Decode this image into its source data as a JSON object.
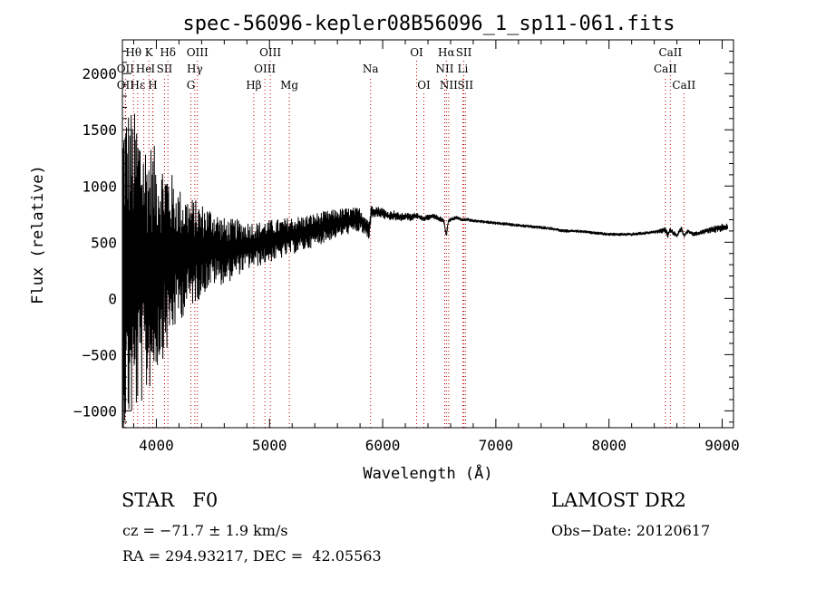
{
  "chart_data": {
    "type": "line",
    "title": "spec-56096-kepler08B56096_1_sp11-061.fits",
    "xlabel": "Wavelength (Å)",
    "ylabel": "Flux (relative)",
    "xlim": [
      3700,
      9100
    ],
    "ylim": [
      -1150,
      2300
    ],
    "xticks": [
      4000,
      5000,
      6000,
      7000,
      8000,
      9000
    ],
    "yticks": [
      -1000,
      -500,
      0,
      500,
      1000,
      1500,
      2000
    ],
    "grid": false,
    "legend": "none",
    "series": [
      {
        "x": [
          3700,
          3760,
          3800,
          3850,
          3900,
          3950,
          4000,
          4050,
          4100,
          4150,
          4200,
          4250,
          4300,
          4350,
          4400,
          4450,
          4500,
          4550,
          4600,
          4650,
          4700,
          4750,
          4800,
          4850,
          4900,
          4950,
          5000,
          5100,
          5200,
          5300,
          5400,
          5500,
          5600,
          5700,
          5800,
          5850,
          5880,
          5900,
          5950,
          6000,
          6050,
          6100,
          6150,
          6200,
          6250,
          6300,
          6350,
          6400,
          6450,
          6500,
          6540,
          6563,
          6580,
          6600,
          6650,
          6700,
          6750,
          6800,
          6850,
          6900,
          7000,
          7100,
          7200,
          7300,
          7400,
          7500,
          7600,
          7700,
          7800,
          7900,
          8000,
          8100,
          8200,
          8300,
          8400,
          8450,
          8500,
          8520,
          8540,
          8560,
          8600,
          8640,
          8662,
          8700,
          8750,
          8800,
          8850,
          8900,
          8950,
          9000,
          9050
        ],
        "y": [
          250,
          300,
          280,
          320,
          260,
          300,
          340,
          350,
          370,
          380,
          390,
          400,
          410,
          420,
          430,
          450,
          460,
          440,
          420,
          430,
          450,
          460,
          470,
          480,
          480,
          500,
          510,
          530,
          560,
          580,
          610,
          640,
          670,
          690,
          700,
          650,
          600,
          780,
          770,
          760,
          730,
          740,
          720,
          730,
          720,
          740,
          710,
          720,
          730,
          710,
          690,
          560,
          690,
          700,
          720,
          700,
          700,
          690,
          690,
          680,
          670,
          660,
          650,
          640,
          630,
          620,
          600,
          600,
          590,
          580,
          570,
          570,
          570,
          580,
          590,
          600,
          610,
          560,
          610,
          590,
          560,
          620,
          560,
          600,
          570,
          580,
          600,
          610,
          620,
          630,
          640
        ],
        "noise": [
          1500,
          1450,
          1400,
          1300,
          1200,
          1100,
          1000,
          900,
          850,
          700,
          600,
          550,
          500,
          460,
          420,
          380,
          350,
          320,
          300,
          280,
          260,
          240,
          220,
          210,
          200,
          200,
          190,
          180,
          170,
          160,
          150,
          140,
          130,
          120,
          110,
          100,
          110,
          60,
          50,
          50,
          45,
          45,
          40,
          35,
          35,
          30,
          30,
          25,
          25,
          25,
          22,
          20,
          20,
          20,
          18,
          15,
          15,
          15,
          15,
          15,
          15,
          15,
          15,
          15,
          15,
          15,
          15,
          15,
          15,
          15,
          15,
          15,
          15,
          15,
          15,
          20,
          30,
          30,
          20,
          25,
          20,
          25,
          20,
          20,
          20,
          20,
          25,
          30,
          35,
          40,
          40
        ]
      }
    ],
    "lines": [
      {
        "label": "Hθ",
        "wave": 3798,
        "row": 0
      },
      {
        "label": "K",
        "wave": 3934,
        "row": 0
      },
      {
        "label": "Hδ",
        "wave": 4102,
        "row": 0
      },
      {
        "label": "OIII",
        "wave": 4363,
        "row": 0
      },
      {
        "label": "OIII",
        "wave": 5007,
        "row": 0
      },
      {
        "label": "OI",
        "wave": 6300,
        "row": 0
      },
      {
        "label": "Hα",
        "wave": 6563,
        "row": 0
      },
      {
        "label": "SII",
        "wave": 6717,
        "row": 0
      },
      {
        "label": "CaII",
        "wave": 8542,
        "row": 0
      },
      {
        "label": "OII",
        "wave": 3727,
        "row": 1
      },
      {
        "label": "He",
        "wave": 3889,
        "row": 1
      },
      {
        "label": "I",
        "wave": 3970,
        "row": 1
      },
      {
        "label": "SII",
        "wave": 4072,
        "row": 1
      },
      {
        "label": "Hγ",
        "wave": 4340,
        "row": 1
      },
      {
        "label": "OIII",
        "wave": 4959,
        "row": 1
      },
      {
        "label": "Na",
        "wave": 5893,
        "row": 1
      },
      {
        "label": "NII",
        "wave": 6548,
        "row": 1
      },
      {
        "label": "Li",
        "wave": 6708,
        "row": 1
      },
      {
        "label": "CaII",
        "wave": 8498,
        "row": 1
      },
      {
        "label": "OII",
        "wave": 3727,
        "row": 2
      },
      {
        "label": "Hε",
        "wave": 3835,
        "row": 2
      },
      {
        "label": "H",
        "wave": 3968,
        "row": 2
      },
      {
        "label": "G",
        "wave": 4305,
        "row": 2
      },
      {
        "label": "Hβ",
        "wave": 4861,
        "row": 2
      },
      {
        "label": "Mg",
        "wave": 5175,
        "row": 2
      },
      {
        "label": "OI",
        "wave": 6364,
        "row": 2
      },
      {
        "label": "NII",
        "wave": 6583,
        "row": 2
      },
      {
        "label": "SII",
        "wave": 6731,
        "row": 2
      },
      {
        "label": "CaII",
        "wave": 8662,
        "row": 2
      }
    ]
  },
  "info": {
    "object_class": "STAR   F0",
    "survey": "LAMOST DR2",
    "redshift": "cz = −71.7 ± 1.9 km/s",
    "obs_date": "Obs−Date: 20120617",
    "coordinates": "RA = 294.93217, DEC =  42.05563"
  }
}
